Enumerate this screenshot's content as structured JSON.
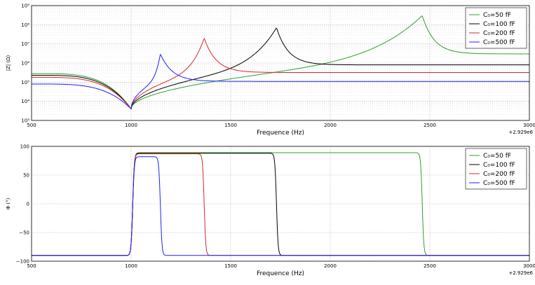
{
  "chart_data": [
    {
      "type": "line",
      "ylabel": "|Z| (Ω)",
      "xlabel": "Frequence (Hz)",
      "offset_label": "+2.929e6",
      "xlim": [
        500,
        3000
      ],
      "ylim": [
        1000,
        1000000000
      ],
      "yscale": "log",
      "xticks": [
        "500",
        "1000",
        "1500",
        "2000",
        "2500",
        "3000"
      ],
      "yticks": [
        "10³",
        "10⁴",
        "10⁵",
        "10⁶",
        "10⁷",
        "10⁸",
        "10⁹"
      ],
      "grid": true,
      "legend_position": "top-right",
      "series": [
        {
          "name": "C₀=50 fF",
          "color": "#2ca02c",
          "peak_x": 2462,
          "peak_y": 300000000,
          "z_at_500": 280000,
          "z_high": 3000000
        },
        {
          "name": "C₀=100 fF",
          "color": "#000000",
          "peak_x": 1730,
          "peak_y": 70000000,
          "z_at_500": 230000,
          "z_high": 800000
        },
        {
          "name": "C₀=200 fF",
          "color": "#d62728",
          "peak_x": 1367,
          "peak_y": 20000000,
          "z_at_500": 180000,
          "z_high": 320000
        },
        {
          "name": "C₀=500 fF",
          "color": "#1f1fff",
          "peak_x": 1147,
          "peak_y": 3000000,
          "z_at_500": 80000,
          "z_high": 110000
        }
      ],
      "minimum": {
        "x": 1000,
        "y": 4000
      }
    },
    {
      "type": "line",
      "ylabel": "Φ (°)",
      "xlabel": "Frequence (Hz)",
      "offset_label": "+2.929e6",
      "xlim": [
        500,
        3000
      ],
      "ylim": [
        -100,
        100
      ],
      "xticks": [
        "500",
        "1000",
        "1500",
        "2000",
        "2500",
        "3000"
      ],
      "yticks": [
        "−100",
        "−50",
        "0",
        "50",
        "100"
      ],
      "grid": true,
      "legend_position": "top-right",
      "series": [
        {
          "name": "C₀=50 fF",
          "color": "#2ca02c",
          "rise_x": 1000,
          "fall_x": 2462,
          "plateau": 89
        },
        {
          "name": "C₀=100 fF",
          "color": "#000000",
          "rise_x": 1000,
          "fall_x": 1730,
          "plateau": 88
        },
        {
          "name": "C₀=200 fF",
          "color": "#d62728",
          "rise_x": 1000,
          "fall_x": 1367,
          "plateau": 87
        },
        {
          "name": "C₀=500 fF",
          "color": "#1f1fff",
          "rise_x": 1000,
          "fall_x": 1147,
          "plateau": 82
        }
      ],
      "baseline": -90
    }
  ]
}
